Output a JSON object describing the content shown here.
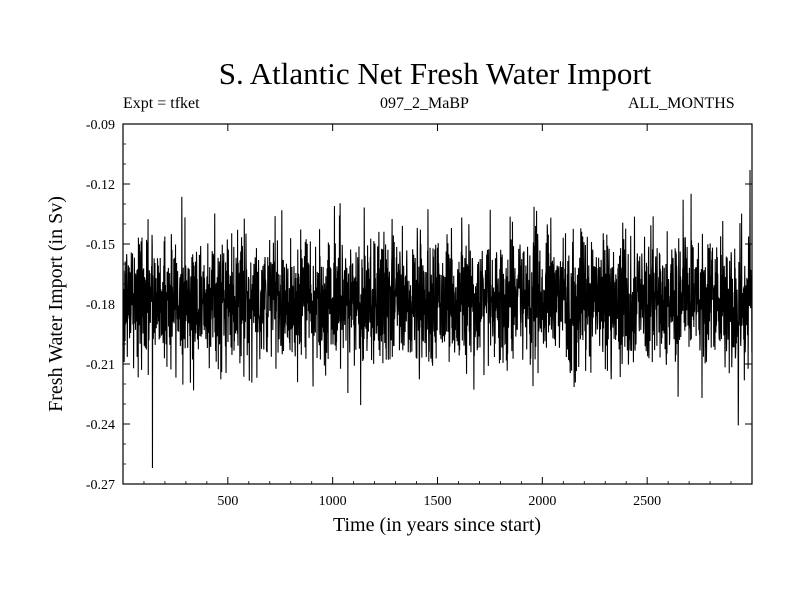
{
  "chart_data": {
    "type": "line",
    "title": "S. Atlantic Net Fresh Water Import",
    "subtitle_left": "Expt = tfket",
    "subtitle_center": "097_2_MaBP",
    "subtitle_right": "ALL_MONTHS",
    "xlabel": "Time (in years since start)",
    "ylabel": "Fresh Water Import (in Sv)",
    "xlim": [
      0,
      3000
    ],
    "ylim": [
      -0.27,
      -0.09
    ],
    "x_ticks": [
      500,
      1000,
      1500,
      2000,
      2500
    ],
    "y_ticks": [
      -0.09,
      -0.12,
      -0.15,
      -0.18,
      -0.21,
      -0.24,
      -0.27
    ],
    "x_tick_labels": [
      "500",
      "1000",
      "1500",
      "2000",
      "2500"
    ],
    "y_tick_labels": [
      "-0.09",
      "-0.12",
      "-0.15",
      "-0.18",
      "-0.21",
      "-0.24",
      "-0.27"
    ],
    "grid": false,
    "series": [
      {
        "color": "#000000",
        "mean": -0.178,
        "std": 0.016,
        "n_points": 3000,
        "min": {
          "x": 140,
          "y": -0.262
        },
        "max": {
          "x": 2990,
          "y": -0.113
        }
      }
    ]
  }
}
